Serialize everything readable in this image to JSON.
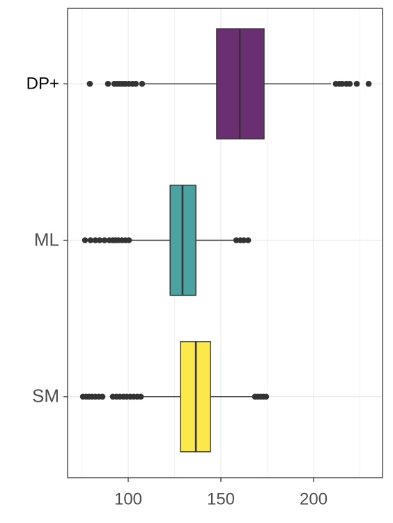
{
  "chart_data": {
    "type": "boxplot",
    "orientation": "horizontal",
    "categories": [
      "DP+",
      "ML",
      "SM"
    ],
    "boxes": [
      {
        "color": "#6a2f70",
        "whisker_low": 108.6,
        "q1": 147.7,
        "median": 160.2,
        "q3": 173.3,
        "whisker_high": 209.4,
        "outliers": [
          79.3,
          89.1,
          92.5,
          94,
          95.5,
          97,
          98.5,
          100.4,
          102.3,
          104.1,
          107.5,
          212,
          213.9,
          215.4,
          217.7,
          219.5,
          223.3,
          229.7
        ]
      },
      {
        "color": "#4aa2a1",
        "whisker_low": 101.5,
        "q1": 122.6,
        "median": 129.3,
        "q3": 136.5,
        "whisker_high": 157.5,
        "outliers": [
          76.7,
          79.7,
          82.3,
          84.6,
          87.2,
          89.8,
          91.7,
          93.2,
          94.7,
          96.6,
          98.5,
          100.4,
          158.3,
          160.5,
          162.4,
          164.7
        ]
      },
      {
        "color": "#fbe84a",
        "whisker_low": 107.9,
        "q1": 128.2,
        "median": 136.5,
        "q3": 144.4,
        "whisker_high": 166.9,
        "outliers": [
          75.6,
          77.4,
          78.9,
          80.5,
          82.3,
          84.2,
          86.1,
          91.7,
          93.6,
          95.5,
          97.4,
          99.2,
          101.1,
          103,
          104.9,
          106.8,
          168.4,
          169.9,
          171.4,
          172.9,
          174.4
        ]
      }
    ],
    "xlim": [
      67.3,
      237.2
    ],
    "xticks": [
      100,
      150,
      200
    ],
    "x_minor_grid": [
      75,
      125,
      175,
      225
    ],
    "grid": true
  }
}
